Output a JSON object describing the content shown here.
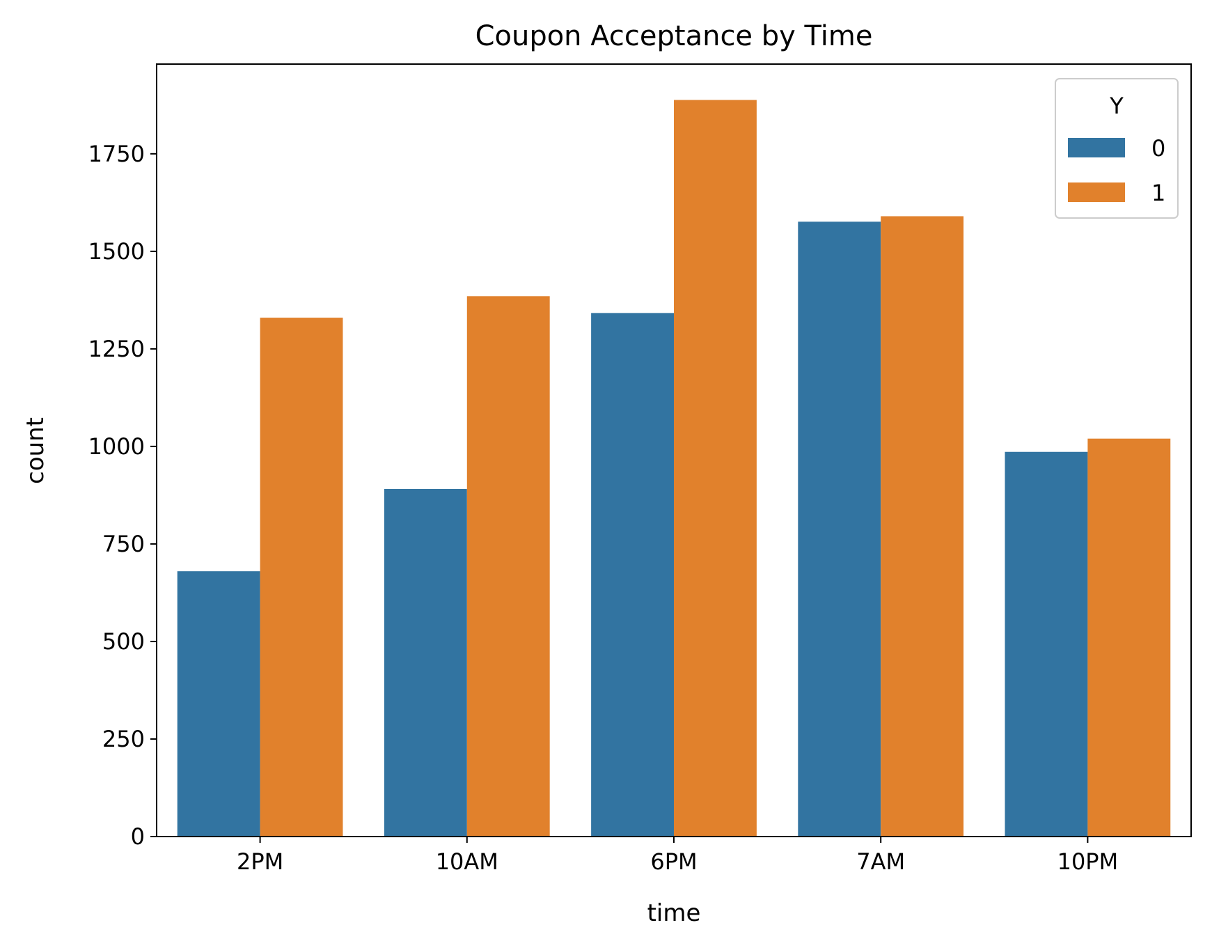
{
  "chart_data": {
    "type": "bar",
    "title": "Coupon Acceptance by Time",
    "xlabel": "time",
    "ylabel": "count",
    "categories": [
      "2PM",
      "10AM",
      "6PM",
      "7AM",
      "10PM"
    ],
    "series": [
      {
        "name": "0",
        "values": [
          680,
          891,
          1342,
          1576,
          986
        ],
        "color": "#3274a1"
      },
      {
        "name": "1",
        "values": [
          1330,
          1385,
          1888,
          1590,
          1020
        ],
        "color": "#e1812c"
      }
    ],
    "ylim": [
      0,
      1980
    ],
    "yticks": [
      0,
      250,
      500,
      750,
      1000,
      1250,
      1500,
      1750
    ],
    "legend": {
      "title": "Y",
      "position": "top-right"
    },
    "grid": false
  }
}
